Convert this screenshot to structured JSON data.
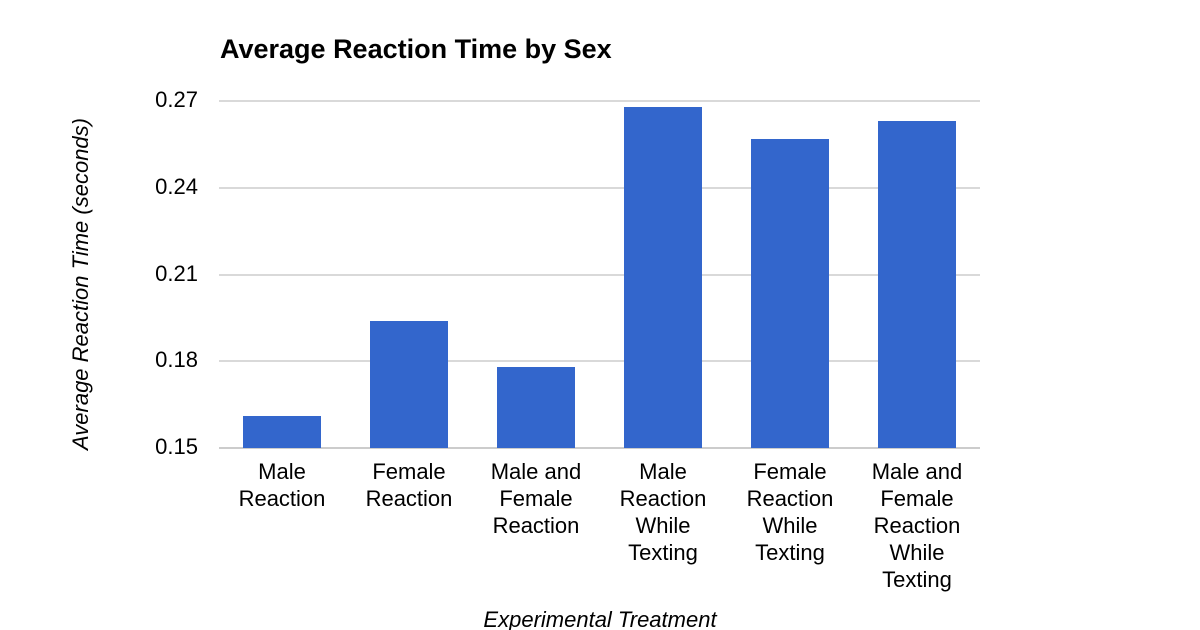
{
  "chart_data": {
    "type": "bar",
    "title": "Average Reaction Time by Sex",
    "xlabel": "Experimental Treatment",
    "ylabel": "Average Reaction Time (seconds)",
    "categories": [
      "Male Reaction",
      "Female Reaction",
      "Male and Female Reaction",
      "Male Reaction While Texting",
      "Female Reaction While Texting",
      "Male and Female Reaction While Texting"
    ],
    "category_tick_lines": [
      [
        "Male",
        "Reaction"
      ],
      [
        "Female",
        "Reaction"
      ],
      [
        "Male and",
        "Female",
        "Reaction"
      ],
      [
        "Male",
        "Reaction",
        "While",
        "Texting"
      ],
      [
        "Female",
        "Reaction",
        "While",
        "Texting"
      ],
      [
        "Male and",
        "Female",
        "Reaction",
        "While",
        "Texting"
      ]
    ],
    "values": [
      0.161,
      0.194,
      0.178,
      0.268,
      0.257,
      0.263
    ],
    "unit": "seconds",
    "y_ticks": [
      "0.27",
      "0.24",
      "0.21",
      "0.18",
      "0.15"
    ],
    "ylim": [
      0.15,
      0.27
    ],
    "grid": true,
    "legend": "none",
    "bar_color": "#3366CC",
    "gridline_color": "#d9d9d9",
    "baseline_color": "#cccccc",
    "title_color": "#000000",
    "text_color": "#000000",
    "background_color": "#ffffff"
  }
}
